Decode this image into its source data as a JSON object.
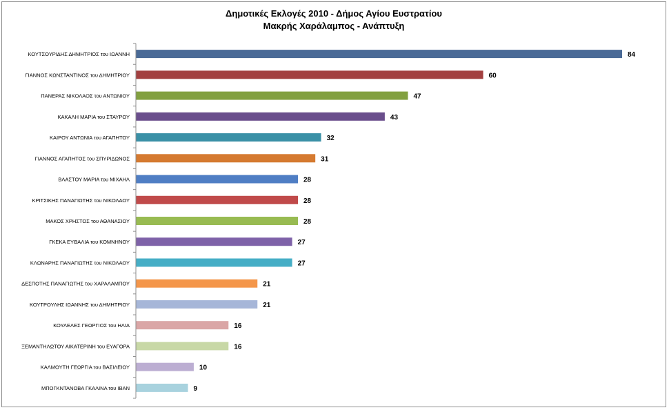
{
  "chart_data": {
    "type": "bar",
    "orientation": "horizontal",
    "title": "Δημοτικές Εκλογές 2010  - Δήμος Αγίου Ευστρατίου",
    "subtitle": "Μακρής Χαράλαμπος - Ανάπτυξη",
    "xlabel": "",
    "ylabel": "",
    "xlim": [
      0,
      84
    ],
    "grid": false,
    "legend": "none",
    "categories": [
      "ΚΟΥΤΣΟΥΡΙΔΗΣ ΔΗΜΗΤΡΙΟΣ του ΙΩΑΝΝΗ",
      "ΓΙΑΝΝΟΣ ΚΩΝΣΤΑΝΤΙΝΟΣ του ΔΗΜΗΤΡΙΟΥ",
      "ΠΑΝΕΡΑΣ ΝΙΚΟΛΑΟΣ του ΑΝΤΩΝΙΟΥ",
      "ΚΑΚΑΛΗ ΜΑΡΙΑ του ΣΤΑΥΡΟΥ",
      "ΚΑΙΡΟΥ ΑΝΤΩΝΙΑ του ΑΓΑΠΗΤΟΥ",
      "ΓΙΑΝΝΟΣ ΑΓΑΠΗΤΟΣ του ΣΠΥΡΙΔΩΝΟΣ",
      "ΒΛΑΣΤΟΥ ΜΑΡΙΑ του ΜΙΧΑΗΛ",
      "ΚΡΙΤΣΙΚΗΣ ΠΑΝΑΓΙΩΤΗΣ του ΝΙΚΟΛΑΟΥ",
      "ΜΑΚΟΣ ΧΡΗΣΤΟΣ του ΑΘΑΝΑΣΙΟΥ",
      "ΓΚΕΚΑ ΕΥΘΑΛΙΑ του ΚΟΜΝΗΝΟΥ",
      "ΚΛΩΝΑΡΗΣ ΠΑΝΑΓΙΩΤΗΣ του ΝΙΚΟΛΑΟΥ",
      "ΔΕΣΠΟΤΗΣ ΠΑΝΑΓΙΩΤΗΣ του ΧΑΡΑΛΑΜΠΟΥ",
      "ΚΟΥΤΡΟΥΛΗΣ ΙΩΑΝΝΗΣ του ΔΗΜΗΤΡΙΟΥ",
      "ΚΟΥΛΕΛΕΣ ΓΕΩΡΓΙΟΣ του ΗΛΙΑ",
      "ΞΕΜΑΝΤΗΛΩΤΟΥ ΑΙΚΑΤΕΡΙΝΗ του ΕΥΑΓΟΡΑ",
      "ΚΑΛΜΟΥΤΗ ΓΕΩΡΓΙΑ του ΒΑΣΙΛΕΙΟΥ",
      "ΜΠΟΓΚΝΤΑΝΟΒΑ ΓΚΑΛΙΝΑ του ΙΒΑΝ"
    ],
    "values": [
      84,
      60,
      47,
      43,
      32,
      31,
      28,
      28,
      28,
      27,
      27,
      21,
      21,
      16,
      16,
      10,
      9
    ],
    "colors": [
      "#4A6A96",
      "#A34040",
      "#82A040",
      "#6A4E8C",
      "#3A90A6",
      "#D57A30",
      "#4F7EC4",
      "#C04A4A",
      "#98BB52",
      "#7E62A8",
      "#46AEC6",
      "#F4964A",
      "#A6B6D8",
      "#DAA6A6",
      "#C8D8A6",
      "#BCAED2",
      "#A8D2DE"
    ]
  }
}
